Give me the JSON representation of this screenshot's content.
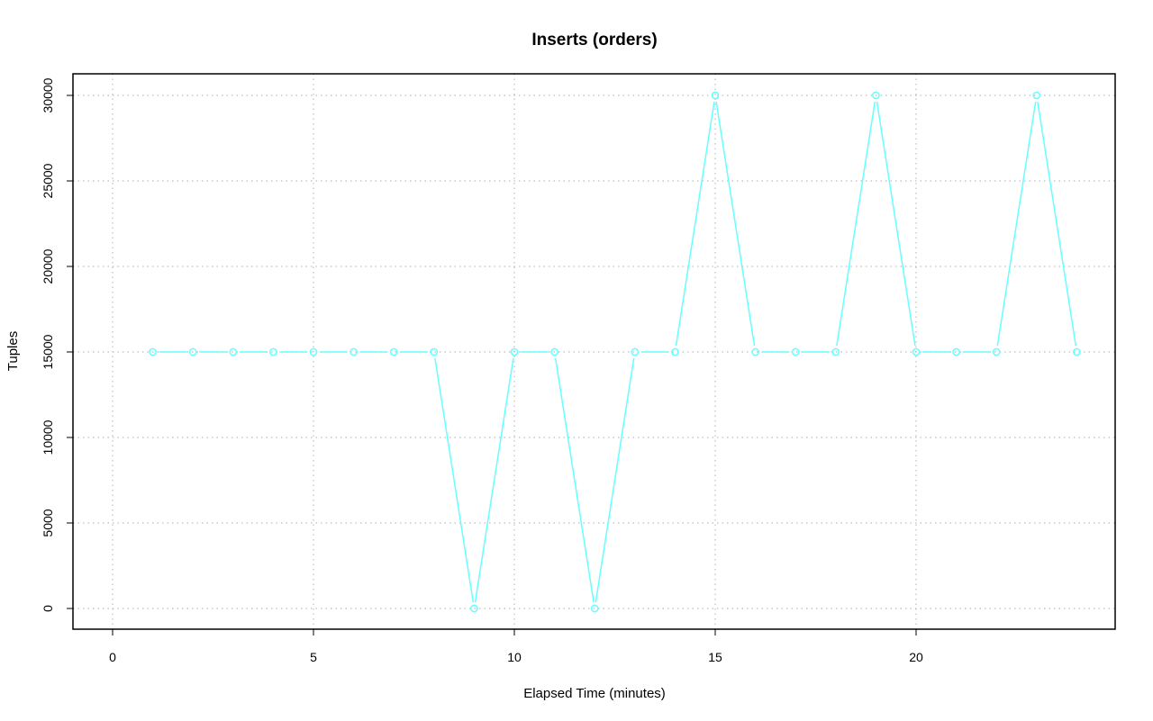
{
  "chart_data": {
    "type": "line",
    "title": "Inserts (orders)",
    "xlabel": "Elapsed Time (minutes)",
    "ylabel": "Tuples",
    "xlim": [
      0,
      24
    ],
    "ylim": [
      0,
      30000
    ],
    "x_ticks": [
      0,
      5,
      10,
      15,
      20
    ],
    "y_ticks": [
      0,
      5000,
      10000,
      15000,
      20000,
      25000,
      30000
    ],
    "grid": true,
    "series": [
      {
        "color": "#66ffff",
        "marker": "circle",
        "x": [
          1,
          2,
          3,
          4,
          5,
          6,
          7,
          8,
          9,
          10,
          11,
          12,
          13,
          14,
          15,
          16,
          17,
          18,
          19,
          20,
          21,
          22,
          23,
          24
        ],
        "values": [
          15000,
          15000,
          15000,
          15000,
          15000,
          15000,
          15000,
          15000,
          0,
          15000,
          15000,
          0,
          15000,
          15000,
          30000,
          15000,
          15000,
          15000,
          30000,
          15000,
          15000,
          15000,
          30000,
          15000
        ]
      }
    ]
  }
}
